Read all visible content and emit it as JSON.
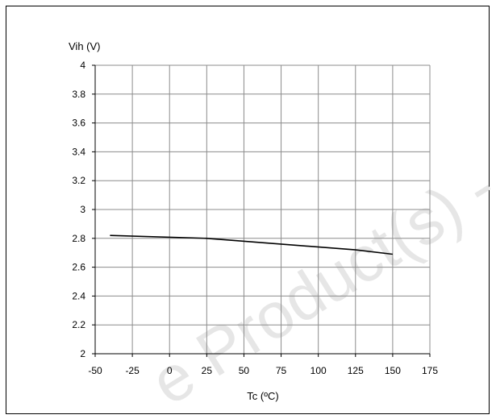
{
  "chart_data": {
    "type": "line",
    "title": "",
    "xlabel": "Tc (ºC)",
    "ylabel": "Vih (V)",
    "xlim": [
      -50,
      175
    ],
    "ylim": [
      2,
      4
    ],
    "x_ticks": [
      -50,
      -25,
      0,
      25,
      50,
      75,
      100,
      125,
      150,
      175
    ],
    "y_ticks": [
      2,
      2.2,
      2.4,
      2.6,
      2.8,
      3,
      3.2,
      3.4,
      3.6,
      3.8,
      4
    ],
    "y_tick_labels": [
      "2",
      "2.2",
      "2.4",
      "2.6",
      "2.8",
      "3",
      "3.2",
      "3.4",
      "3.6",
      "3.8",
      "4"
    ],
    "grid": true,
    "legend": "none",
    "series": [
      {
        "x": [
          -40,
          25,
          125,
          150
        ],
        "y": [
          2.82,
          2.8,
          2.72,
          2.69
        ],
        "color": "#000000"
      }
    ]
  },
  "watermark": {
    "text": "e Product(s) - C",
    "color": "#e6e6e6"
  }
}
